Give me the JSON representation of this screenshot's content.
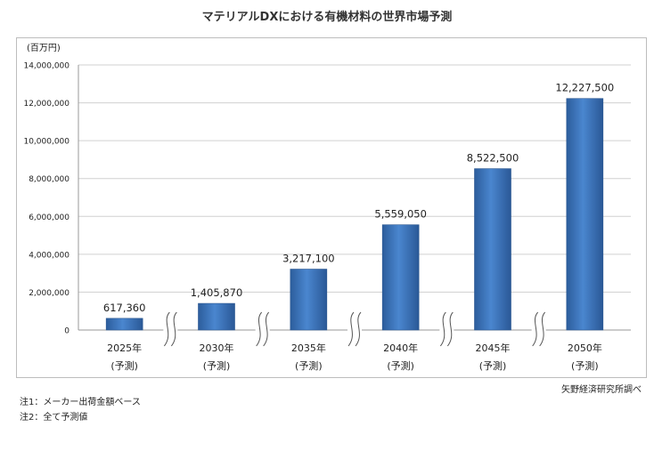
{
  "chart_data": {
    "type": "bar",
    "title": "マテリアルDXにおける有機材料の世界市場予測",
    "unit_label": "(百万円)",
    "categories": [
      "2025年",
      "2030年",
      "2035年",
      "2040年",
      "2045年",
      "2050年"
    ],
    "category_sublabel": "(予測)",
    "values": [
      617360,
      1405870,
      3217100,
      5559050,
      8522500,
      12227500
    ],
    "value_labels": [
      "617,360",
      "1,405,870",
      "3,217,100",
      "5,559,050",
      "8,522,500",
      "12,227,500"
    ],
    "ylim": [
      0,
      14000000
    ],
    "y_ticks": [
      0,
      2000000,
      4000000,
      6000000,
      8000000,
      10000000,
      12000000,
      14000000
    ],
    "y_tick_labels": [
      "0",
      "2,000,000",
      "4,000,000",
      "6,000,000",
      "8,000,000",
      "10,000,000",
      "12,000,000",
      "14,000,000"
    ],
    "grid": true,
    "axis_breaks": true,
    "bar_color": "#3a70b5"
  },
  "notes": {
    "note1": "注1：メーカー出荷金額ベース",
    "note2": "注2：全て予測値"
  },
  "source": "矢野経済研究所調べ"
}
